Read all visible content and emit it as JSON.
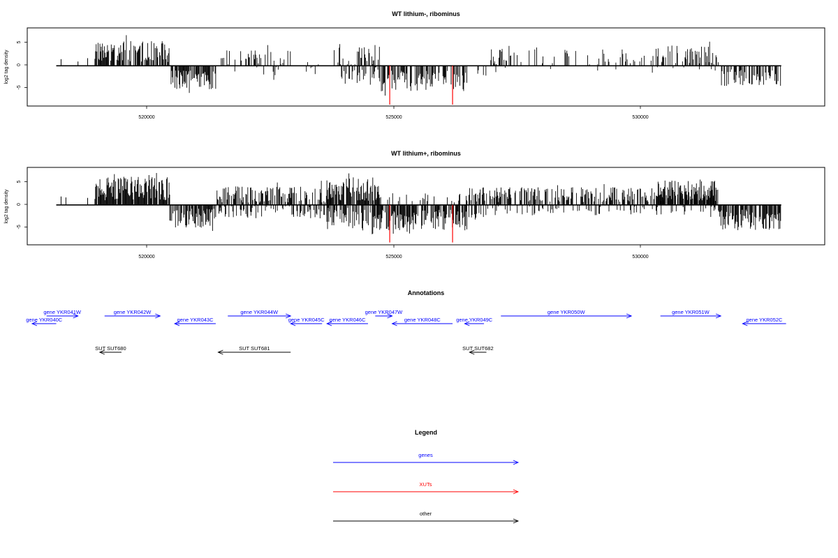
{
  "colors": {
    "genes": "#0000ff",
    "xuts": "#ff0000",
    "other": "#000000",
    "frame": "#000000"
  },
  "chart_data": [
    {
      "type": "bar",
      "title": "WT lithium-, ribominus",
      "ylabel": "log2 tag density",
      "xlim": [
        517500,
        534000
      ],
      "ylim": [
        -8.5,
        8
      ],
      "x_ticks": [
        520000,
        525000,
        530000
      ],
      "x_tick_labels": [
        "520000",
        "525000",
        "530000"
      ],
      "y_ticks": [
        5,
        0,
        -5
      ],
      "y_tick_labels": [
        "5",
        "0",
        "-5"
      ],
      "baseline": {
        "x": [
          518100,
          533100
        ],
        "y": 0
      },
      "dense_segments": [
        {
          "x": [
            518900,
            520450
          ],
          "dir": 1,
          "mean": 3.0,
          "amp": 2.2,
          "density": 0.75
        },
        {
          "x": [
            520450,
            521400
          ],
          "dir": -1,
          "mean": 3.0,
          "amp": 2.0,
          "density": 0.7
        },
        {
          "x": [
            521500,
            522950
          ],
          "dir": 1,
          "mean": 1.5,
          "amp": 2.0,
          "density": 0.2
        },
        {
          "x": [
            521600,
            522950
          ],
          "dir": -1,
          "mean": 1.0,
          "amp": 1.2,
          "density": 0.1
        },
        {
          "x": [
            522950,
            523800
          ],
          "dir": 1,
          "mean": 1.0,
          "amp": 1.0,
          "density": 0.06
        },
        {
          "x": [
            522950,
            523800
          ],
          "dir": -1,
          "mean": 1.0,
          "amp": 1.0,
          "density": 0.05
        },
        {
          "x": [
            523850,
            524800
          ],
          "dir": 1,
          "mean": 2.2,
          "amp": 2.5,
          "density": 0.45
        },
        {
          "x": [
            524000,
            524800
          ],
          "dir": -1,
          "mean": 2.0,
          "amp": 2.0,
          "density": 0.35
        },
        {
          "x": [
            524800,
            526600
          ],
          "dir": -1,
          "mean": 3.2,
          "amp": 2.2,
          "density": 0.55
        },
        {
          "x": [
            526600,
            527000
          ],
          "dir": -1,
          "mean": 2.0,
          "amp": 1.2,
          "density": 0.15
        },
        {
          "x": [
            527000,
            531800
          ],
          "dir": 1,
          "mean": 1.8,
          "amp": 1.8,
          "density": 0.18
        },
        {
          "x": [
            527000,
            531800
          ],
          "dir": -1,
          "mean": 1.0,
          "amp": 0.8,
          "density": 0.05
        },
        {
          "x": [
            530500,
            531800
          ],
          "dir": 1,
          "mean": 2.3,
          "amp": 2.0,
          "density": 0.25
        },
        {
          "x": [
            531850,
            533100
          ],
          "dir": -1,
          "mean": 2.5,
          "amp": 1.8,
          "density": 0.5
        }
      ],
      "isolated_bars": [
        {
          "x": 518200,
          "y": 1.4
        },
        {
          "x": 518550,
          "y": 0.9
        },
        {
          "x": 518750,
          "y": 1.6
        }
      ],
      "highlight_bars": [
        {
          "x": 525000,
          "y": -8.2
        },
        {
          "x": 526300,
          "y": -8.2
        }
      ]
    },
    {
      "type": "bar",
      "title": "WT lithium+, ribominus",
      "ylabel": "log2 tag density",
      "xlim": [
        517500,
        534000
      ],
      "ylim": [
        -8.5,
        8
      ],
      "x_ticks": [
        520000,
        525000,
        530000
      ],
      "x_tick_labels": [
        "520000",
        "525000",
        "530000"
      ],
      "y_ticks": [
        5,
        0,
        -5
      ],
      "y_tick_labels": [
        "5",
        "0",
        "-5"
      ],
      "baseline": {
        "x": [
          518100,
          533100
        ],
        "y": 0
      },
      "dense_segments": [
        {
          "x": [
            518900,
            520450
          ],
          "dir": 1,
          "mean": 3.5,
          "amp": 2.5,
          "density": 0.9
        },
        {
          "x": [
            520450,
            521400
          ],
          "dir": -1,
          "mean": 2.8,
          "amp": 2.0,
          "density": 0.75
        },
        {
          "x": [
            521400,
            523800
          ],
          "dir": 1,
          "mean": 2.2,
          "amp": 1.8,
          "density": 0.5
        },
        {
          "x": [
            521400,
            523800
          ],
          "dir": -1,
          "mean": 1.6,
          "amp": 1.4,
          "density": 0.35
        },
        {
          "x": [
            523700,
            524800
          ],
          "dir": 1,
          "mean": 3.2,
          "amp": 2.5,
          "density": 0.75
        },
        {
          "x": [
            523700,
            524800
          ],
          "dir": -1,
          "mean": 3.0,
          "amp": 2.5,
          "density": 0.6
        },
        {
          "x": [
            524800,
            526600
          ],
          "dir": -1,
          "mean": 3.2,
          "amp": 2.2,
          "density": 0.75
        },
        {
          "x": [
            524800,
            526600
          ],
          "dir": 1,
          "mean": 1.5,
          "amp": 1.0,
          "density": 0.15
        },
        {
          "x": [
            526600,
            527000
          ],
          "dir": -1,
          "mean": 2.2,
          "amp": 1.5,
          "density": 0.45
        },
        {
          "x": [
            526600,
            531800
          ],
          "dir": 1,
          "mean": 2.2,
          "amp": 1.6,
          "density": 0.55
        },
        {
          "x": [
            527000,
            531800
          ],
          "dir": -1,
          "mean": 1.2,
          "amp": 1.0,
          "density": 0.18
        },
        {
          "x": [
            530500,
            531800
          ],
          "dir": 1,
          "mean": 3.0,
          "amp": 2.2,
          "density": 0.75
        },
        {
          "x": [
            531800,
            533100
          ],
          "dir": -1,
          "mean": 3.2,
          "amp": 2.2,
          "density": 0.8
        }
      ],
      "isolated_bars": [
        {
          "x": 518200,
          "y": 1.8
        },
        {
          "x": 518300,
          "y": 1.6
        },
        {
          "x": 518750,
          "y": 1.5
        }
      ],
      "highlight_bars": [
        {
          "x": 525000,
          "y": -8.0
        },
        {
          "x": 526300,
          "y": -8.0
        }
      ]
    }
  ],
  "annotations": {
    "title": "Annotations",
    "genes": [
      {
        "label": "gene YKR040C",
        "start": 517600,
        "end": 518100,
        "strand": "-"
      },
      {
        "label": "gene YKR041W",
        "start": 517900,
        "end": 518550,
        "strand": "+"
      },
      {
        "label": "gene YKR042W",
        "start": 519100,
        "end": 520250,
        "strand": "+"
      },
      {
        "label": "gene YKR043C",
        "start": 520550,
        "end": 521400,
        "strand": "-"
      },
      {
        "label": "gene YKR044W",
        "start": 521650,
        "end": 522950,
        "strand": "+"
      },
      {
        "label": "gene YKR045C",
        "start": 522950,
        "end": 523600,
        "strand": "-"
      },
      {
        "label": "gene YKR046C",
        "start": 523700,
        "end": 524550,
        "strand": "-"
      },
      {
        "label": "gene YKR047W",
        "start": 524700,
        "end": 525050,
        "strand": "+"
      },
      {
        "label": "gene YKR048C",
        "start": 525050,
        "end": 526300,
        "strand": "-"
      },
      {
        "label": "gene YKR049C",
        "start": 526550,
        "end": 526950,
        "strand": "-"
      },
      {
        "label": "gene YKR050W",
        "start": 527300,
        "end": 530000,
        "strand": "+"
      },
      {
        "label": "gene YKR051W",
        "start": 530600,
        "end": 531850,
        "strand": "+"
      },
      {
        "label": "gene YKR052C",
        "start": 532300,
        "end": 533200,
        "strand": "-"
      }
    ],
    "other": [
      {
        "label": "SUT SUT680",
        "start": 519000,
        "end": 519450,
        "strand": "-"
      },
      {
        "label": "SUT SUT681",
        "start": 521450,
        "end": 522950,
        "strand": "-"
      },
      {
        "label": "SUT SUT682",
        "start": 526650,
        "end": 527000,
        "strand": "-"
      }
    ]
  },
  "legend": {
    "title": "Legend",
    "items": [
      {
        "label": "genes",
        "color": "#0000ff"
      },
      {
        "label": "XUTs",
        "color": "#ff0000"
      },
      {
        "label": "other",
        "color": "#000000"
      }
    ]
  }
}
